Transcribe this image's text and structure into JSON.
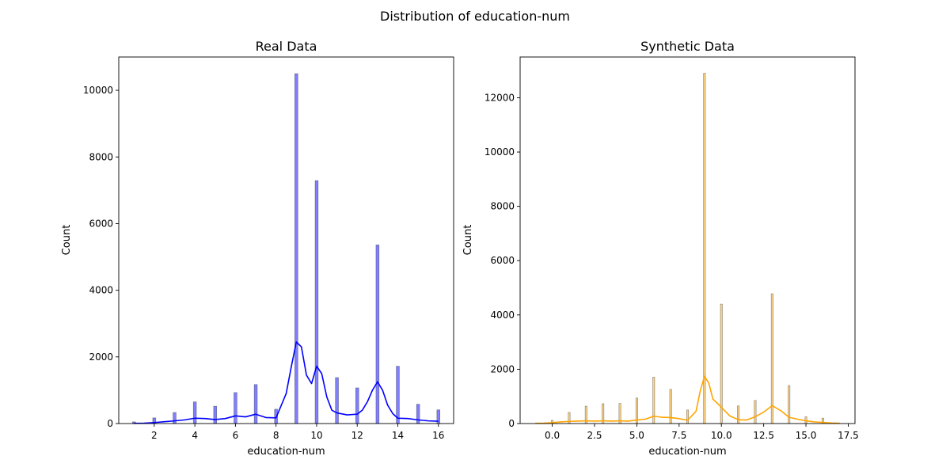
{
  "figure": {
    "title": "Distribution of education-num"
  },
  "chart_data": [
    {
      "type": "bar",
      "title": "Real Data",
      "xlabel": "education-num",
      "ylabel": "Count",
      "xlim": [
        0.25,
        16.75
      ],
      "ylim": [
        0,
        11000
      ],
      "xticks": [
        2,
        4,
        6,
        8,
        10,
        12,
        14,
        16
      ],
      "xtick_labels": [
        "2",
        "4",
        "6",
        "8",
        "10",
        "12",
        "14",
        "16"
      ],
      "yticks": [
        0,
        2000,
        4000,
        6000,
        8000,
        10000
      ],
      "ytick_labels": [
        "0",
        "2000",
        "4000",
        "6000",
        "8000",
        "10000"
      ],
      "bar_width": 0.15,
      "color": "#0000ff",
      "kde_color": "#0000ff",
      "x": [
        1,
        2,
        3,
        4,
        5,
        6,
        7,
        8,
        9,
        10,
        11,
        12,
        13,
        14,
        15,
        16
      ],
      "values": [
        50,
        170,
        330,
        650,
        520,
        930,
        1170,
        430,
        10500,
        7290,
        1380,
        1070,
        5360,
        1720,
        580,
        410
      ],
      "kde": {
        "x": [
          1,
          1.5,
          2,
          2.5,
          3,
          3.5,
          4,
          4.5,
          5,
          5.5,
          6,
          6.5,
          7,
          7.5,
          8,
          8.5,
          8.75,
          9,
          9.25,
          9.5,
          9.75,
          10,
          10.25,
          10.5,
          10.75,
          11,
          11.5,
          12,
          12.25,
          12.5,
          12.75,
          13,
          13.25,
          13.5,
          13.75,
          14,
          14.5,
          15,
          15.5,
          16
        ],
        "y": [
          5,
          10,
          30,
          55,
          80,
          110,
          160,
          150,
          120,
          150,
          230,
          200,
          280,
          180,
          170,
          900,
          1700,
          2450,
          2300,
          1450,
          1200,
          1720,
          1500,
          800,
          400,
          320,
          260,
          280,
          400,
          650,
          1000,
          1250,
          1000,
          550,
          300,
          160,
          150,
          110,
          80,
          70
        ]
      }
    },
    {
      "type": "bar",
      "title": "Synthetic Data",
      "xlabel": "education-num",
      "ylabel": "Count",
      "xlim": [
        -1.9,
        17.9
      ],
      "ylim": [
        0,
        13500
      ],
      "xticks": [
        0,
        2.5,
        5,
        7.5,
        10,
        12.5,
        15,
        17.5
      ],
      "xtick_labels": [
        "0.0",
        "2.5",
        "5.0",
        "7.5",
        "10.0",
        "12.5",
        "15.0",
        "17.5"
      ],
      "yticks": [
        0,
        2000,
        4000,
        6000,
        8000,
        10000,
        12000
      ],
      "ytick_labels": [
        "0",
        "2000",
        "4000",
        "6000",
        "8000",
        "10000",
        "12000"
      ],
      "bar_width": 0.11,
      "color": "#ffa500",
      "kde_color": "#ffa500",
      "x": [
        0,
        1,
        2,
        3,
        4,
        5,
        6,
        7,
        8,
        9,
        10,
        11,
        12,
        13,
        14,
        15,
        16
      ],
      "values": [
        120,
        410,
        640,
        730,
        740,
        940,
        1710,
        1260,
        500,
        12900,
        4400,
        650,
        850,
        4780,
        1400,
        250,
        200
      ],
      "kde": {
        "x": [
          -1,
          -0.5,
          0,
          0.5,
          1,
          1.5,
          2,
          2.5,
          3,
          3.5,
          4,
          4.5,
          5,
          5.5,
          6,
          6.5,
          7,
          7.5,
          8,
          8.5,
          8.75,
          9,
          9.25,
          9.5,
          10,
          10.5,
          11,
          11.5,
          12,
          12.5,
          13,
          13.5,
          14,
          14.5,
          15,
          15.5,
          16,
          16.5,
          17
        ],
        "y": [
          10,
          15,
          30,
          60,
          80,
          90,
          100,
          90,
          100,
          90,
          100,
          90,
          130,
          160,
          270,
          230,
          220,
          180,
          120,
          450,
          1200,
          1740,
          1500,
          900,
          600,
          280,
          140,
          130,
          250,
          420,
          660,
          480,
          230,
          160,
          100,
          60,
          40,
          20,
          10
        ]
      }
    }
  ]
}
